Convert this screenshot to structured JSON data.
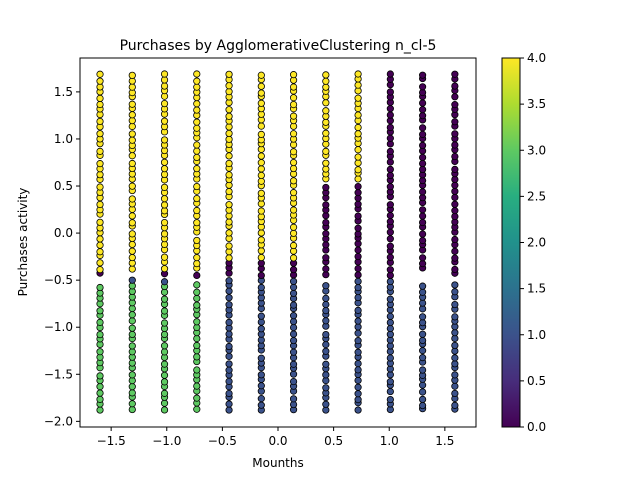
{
  "chart_data": {
    "type": "scatter",
    "title": "Purchases by AgglomerativeClustering n_cl-5",
    "xlabel": "Mounths",
    "ylabel": "Purchases activity",
    "xlim": [
      -1.78,
      1.78
    ],
    "ylim": [
      -2.06,
      1.86
    ],
    "xticks": [
      -1.5,
      -1.0,
      -0.5,
      0.0,
      0.5,
      1.0,
      1.5
    ],
    "xtick_labels": [
      "−1.5",
      "−1.0",
      "−0.5",
      "0.0",
      "0.5",
      "1.0",
      "1.5"
    ],
    "yticks": [
      -2.0,
      -1.5,
      -1.0,
      -0.5,
      0.0,
      0.5,
      1.0,
      1.5
    ],
    "ytick_labels": [
      "−2.0",
      "−1.5",
      "−1.0",
      "−0.5",
      "0.0",
      "0.5",
      "1.0",
      "1.5"
    ],
    "colorbar": {
      "range": [
        0,
        4
      ],
      "ticks": [
        0.0,
        0.5,
        1.0,
        1.5,
        2.0,
        2.5,
        3.0,
        3.5,
        4.0
      ],
      "tick_labels": [
        "0.0",
        "0.5",
        "1.0",
        "1.5",
        "2.0",
        "2.5",
        "3.0",
        "3.5",
        "4.0"
      ],
      "colormap": "viridis"
    },
    "cluster_colors": {
      "0": "#440154",
      "1": "#3b528b",
      "2": "#21918c",
      "3": "#5ec962",
      "4": "#fde725"
    },
    "x_values": [
      -1.6,
      -1.31,
      -1.02,
      -0.73,
      -0.44,
      -0.15,
      0.14,
      0.43,
      0.72,
      1.01,
      1.3,
      1.59
    ],
    "y_range": [
      -1.88,
      1.69
    ],
    "cluster_rule": [
      {
        "x_min": -1.6,
        "x_max": -0.73,
        "y_min": -0.42,
        "y_max": 1.69,
        "cluster": 4
      },
      {
        "x_min": -1.6,
        "x_max": -0.73,
        "y_min": -1.88,
        "y_max": -0.53,
        "cluster": 3
      },
      {
        "x_min": -0.44,
        "x_max": 1.59,
        "y_min": -1.88,
        "y_max": -0.53,
        "cluster": 1
      },
      {
        "x_min": -0.44,
        "x_max": 0.72,
        "y_min": 0.55,
        "y_max": 1.69,
        "cluster": 4
      },
      {
        "x_min": -0.44,
        "x_max": 0.14,
        "y_min": -0.27,
        "y_max": 0.55,
        "cluster": 4
      },
      {
        "x_min": 0.14,
        "x_max": 0.72,
        "y_min": -0.33,
        "y_max": 0.55,
        "cluster": 0
      },
      {
        "x_min": 1.01,
        "x_max": 1.59,
        "y_min": -0.42,
        "y_max": 1.69,
        "cluster": 0
      }
    ],
    "marker": {
      "edgecolor": "#000000"
    }
  }
}
